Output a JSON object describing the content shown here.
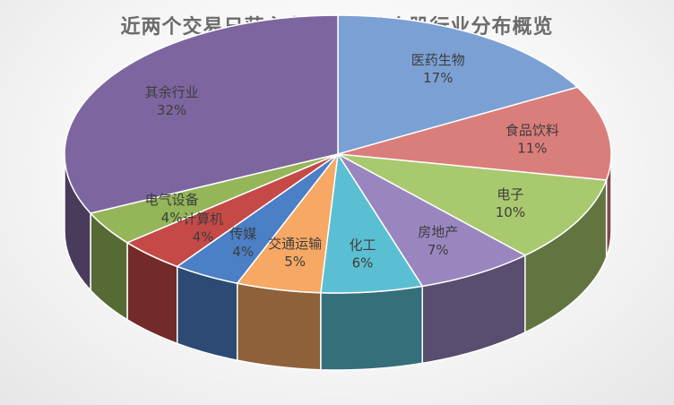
{
  "chart_data": {
    "type": "pie",
    "title": "近两个交易日获主力资金青睐个股行业分布概览",
    "slices": [
      {
        "label": "医药生物",
        "value": 17,
        "value_label": "17%",
        "color": "#7ba1d4"
      },
      {
        "label": "食品饮料",
        "value": 11,
        "value_label": "11%",
        "color": "#da7e7c"
      },
      {
        "label": "电子",
        "value": 10,
        "value_label": "10%",
        "color": "#a9c96f"
      },
      {
        "label": "房地产",
        "value": 7,
        "value_label": "7%",
        "color": "#9a86bf"
      },
      {
        "label": "化工",
        "value": 6,
        "value_label": "6%",
        "color": "#5bbfd3"
      },
      {
        "label": "交通运输",
        "value": 5,
        "value_label": "5%",
        "color": "#f6a864"
      },
      {
        "label": "传媒",
        "value": 4,
        "value_label": "4%",
        "color": "#4b7fc6"
      },
      {
        "label": "计算机",
        "value": 4,
        "value_label": "4%",
        "color": "#c54a47"
      },
      {
        "label": "电气设备",
        "value": 4,
        "value_label": "4%",
        "color": "#94b659"
      },
      {
        "label": "其余行业",
        "value": 32,
        "value_label": "32%",
        "color": "#7d669f"
      }
    ],
    "legend": "none"
  }
}
